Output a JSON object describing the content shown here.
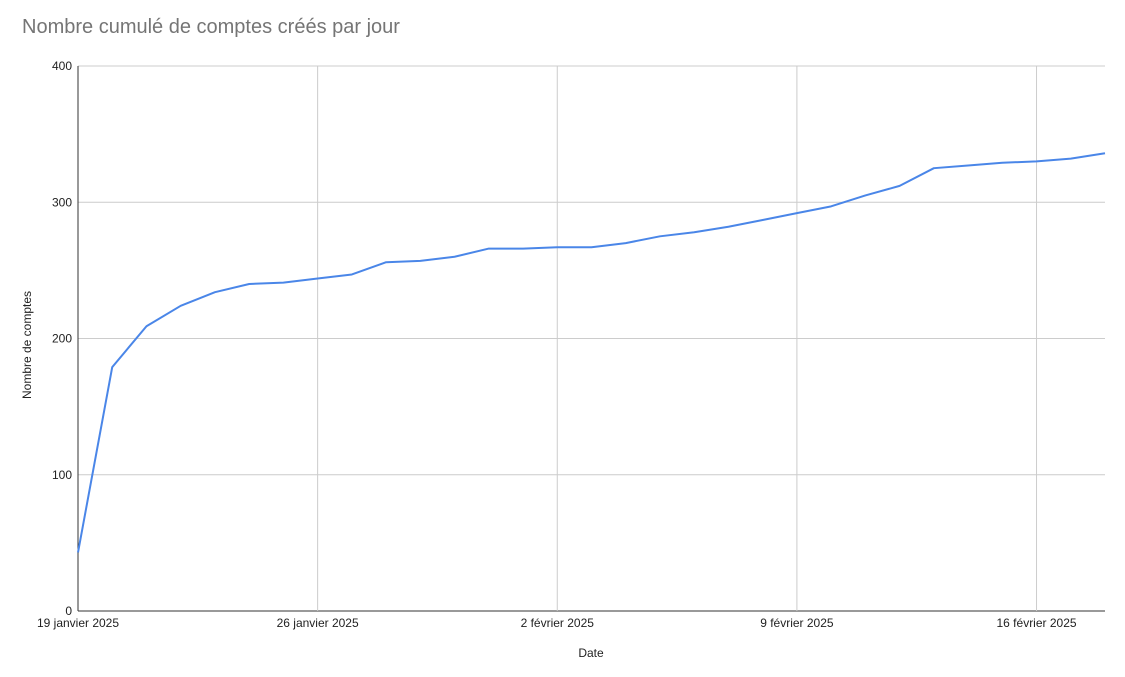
{
  "chart_data": {
    "type": "line",
    "title": "Nombre cumulé de comptes créés par jour",
    "x_label": "Date",
    "y_label": "Nombre de comptes",
    "x": [
      "2025-01-19",
      "2025-01-20",
      "2025-01-21",
      "2025-01-22",
      "2025-01-23",
      "2025-01-24",
      "2025-01-25",
      "2025-01-26",
      "2025-01-27",
      "2025-01-28",
      "2025-01-29",
      "2025-01-30",
      "2025-01-31",
      "2025-02-01",
      "2025-02-02",
      "2025-02-03",
      "2025-02-04",
      "2025-02-05",
      "2025-02-06",
      "2025-02-07",
      "2025-02-08",
      "2025-02-09",
      "2025-02-10",
      "2025-02-11",
      "2025-02-12",
      "2025-02-13",
      "2025-02-14",
      "2025-02-15",
      "2025-02-16",
      "2025-02-17",
      "2025-02-18"
    ],
    "series": [
      {
        "name": "Nombre de comptes",
        "color": "#4a86e8",
        "values": [
          43,
          179,
          209,
          224,
          234,
          240,
          241,
          244,
          247,
          256,
          257,
          260,
          266,
          266,
          267,
          267,
          270,
          275,
          278,
          282,
          287,
          292,
          297,
          305,
          312,
          325,
          327,
          329,
          330,
          332,
          336
        ]
      }
    ],
    "xlim": [
      "2025-01-19",
      "2025-02-18"
    ],
    "xticks": [
      {
        "value": "2025-01-19",
        "label": "19 janvier 2025"
      },
      {
        "value": "2025-01-26",
        "label": "26 janvier 2025"
      },
      {
        "value": "2025-02-02",
        "label": "2 février 2025"
      },
      {
        "value": "2025-02-09",
        "label": "9 février 2025"
      },
      {
        "value": "2025-02-16",
        "label": "16 février 2025"
      }
    ],
    "ylim": [
      0,
      400
    ],
    "yticks": [
      0,
      100,
      200,
      300,
      400
    ],
    "grid": true
  }
}
